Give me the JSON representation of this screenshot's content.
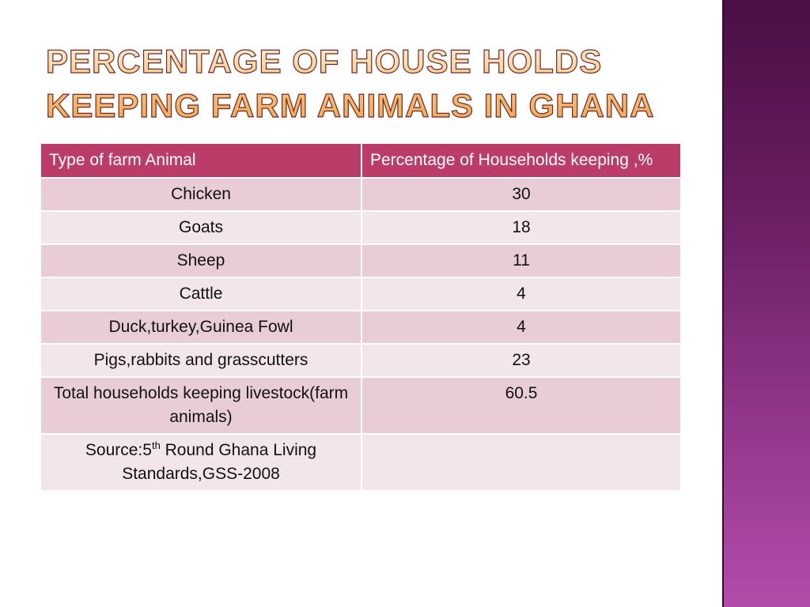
{
  "title": "PERCENTAGE OF HOUSE HOLDS KEEPING FARM ANIMALS IN GHANA",
  "table": {
    "headers": [
      "Type of farm Animal",
      "Percentage of Households keeping ,%"
    ],
    "rows": [
      {
        "animal": "Chicken",
        "percent": "30"
      },
      {
        "animal": "Goats",
        "percent": "18"
      },
      {
        "animal": "Sheep",
        "percent": "11"
      },
      {
        "animal": "Cattle",
        "percent": "4"
      },
      {
        "animal": "Duck,turkey,Guinea Fowl",
        "percent": "4"
      },
      {
        "animal": "Pigs,rabbits and grasscutters",
        "percent": "23"
      },
      {
        "animal": "Total households keeping livestock(farm animals)",
        "percent": "60.5"
      }
    ],
    "source": {
      "prefix": "Source:5",
      "sup": "th",
      "suffix": " Round Ghana Living Standards,GSS-2008"
    }
  },
  "colors": {
    "header": "#bb3c68",
    "row_odd": "#e8cdd6",
    "row_even": "#f3e6eb",
    "sidebar_top": "#4a0f44",
    "sidebar_bottom": "#b24caa"
  }
}
